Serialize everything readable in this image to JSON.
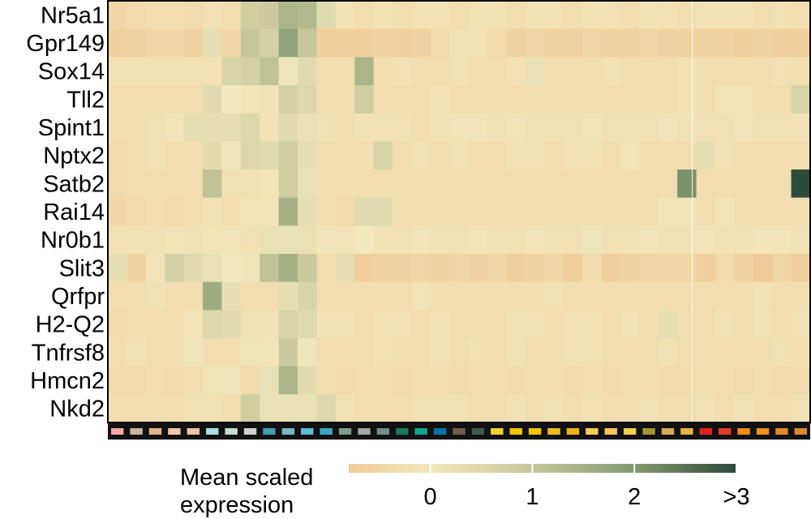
{
  "chart_data": {
    "type": "heatmap",
    "genes": [
      "Nr5a1",
      "Gpr149",
      "Sox14",
      "Tll2",
      "Spint1",
      "Nptx2",
      "Satb2",
      "Rai14",
      "Nr0b1",
      "Slit3",
      "Qrfpr",
      "H2-Q2",
      "Tnfrsf8",
      "Hmcn2",
      "Nkd2"
    ],
    "cluster_colors": [
      "#f4a9a3",
      "#c9b6a1",
      "#e3b48a",
      "#f3c6a2",
      "#efc2a2",
      "#a9dfdf",
      "#c6ddd2",
      "#cfcfcf",
      "#3f9fb2",
      "#77b8c6",
      "#5dbdd2",
      "#3ba7c5",
      "#7d9c8c",
      "#9fa8a3",
      "#6f8f89",
      "#1b7861",
      "#12a48f",
      "#0a74a7",
      "#6e5f4e",
      "#3d5c50",
      "#f2d22d",
      "#f2c600",
      "#f2c600",
      "#f1bb1f",
      "#f2b21b",
      "#f4cf51",
      "#f6c659",
      "#f3cc52",
      "#a3962d",
      "#d7a95b",
      "#e9b045",
      "#e2211d",
      "#e33a27",
      "#f08b14",
      "#f2911d",
      "#e1892a",
      "#d98b2b"
    ],
    "values": [
      [
        -0.5,
        -0.4,
        -0.3,
        -0.3,
        -0.4,
        -0.2,
        -0.3,
        0.8,
        0.9,
        1.4,
        1.3,
        0.4,
        -0.2,
        -0.3,
        -0.2,
        -0.3,
        -0.2,
        -0.2,
        -0.3,
        -0.2,
        -0.2,
        -0.3,
        -0.2,
        -0.2,
        -0.3,
        -0.2,
        -0.2,
        -0.3,
        -0.2,
        -0.2,
        -0.3,
        -0.2,
        -0.2,
        -0.2,
        -0.3,
        -0.2,
        -0.3
      ],
      [
        -0.7,
        -0.6,
        -0.5,
        -0.5,
        -0.6,
        0.3,
        -0.5,
        1.0,
        0.7,
        1.8,
        1.0,
        -0.7,
        -0.7,
        -0.7,
        -0.6,
        -0.7,
        -0.6,
        -0.4,
        -0.2,
        -0.2,
        -0.4,
        -0.6,
        -0.5,
        -0.6,
        -0.6,
        -0.5,
        -0.6,
        -0.6,
        -0.5,
        -0.6,
        -0.6,
        -0.6,
        -0.6,
        -0.7,
        -0.6,
        -0.7,
        -0.7
      ],
      [
        -0.2,
        -0.2,
        -0.2,
        -0.2,
        -0.2,
        -0.2,
        0.6,
        0.7,
        1.1,
        0.1,
        0.4,
        -0.3,
        -0.3,
        1.4,
        -0.3,
        -0.2,
        -0.3,
        -0.3,
        -0.2,
        -0.3,
        -0.3,
        -0.2,
        0.2,
        -0.3,
        -0.3,
        -0.3,
        -0.2,
        -0.3,
        -0.3,
        -0.3,
        -0.2,
        -0.3,
        -0.3,
        -0.3,
        -0.3,
        -0.2,
        -0.3
      ],
      [
        -0.3,
        -0.3,
        -0.3,
        -0.3,
        -0.3,
        0.4,
        0.0,
        -0.1,
        -0.2,
        0.7,
        0.5,
        -0.3,
        -0.3,
        0.8,
        -0.3,
        -0.3,
        -0.3,
        -0.2,
        -0.3,
        -0.3,
        -0.3,
        -0.3,
        -0.3,
        -0.3,
        -0.3,
        -0.3,
        -0.3,
        -0.3,
        -0.3,
        -0.3,
        -0.2,
        -0.3,
        -0.1,
        -0.1,
        -0.3,
        -0.3,
        0.6
      ],
      [
        -0.3,
        -0.3,
        -0.2,
        -0.1,
        0.3,
        0.3,
        0.3,
        0.5,
        -0.2,
        0.4,
        0.2,
        -0.2,
        -0.3,
        -0.2,
        -0.2,
        -0.2,
        -0.3,
        -0.2,
        -0.1,
        -0.1,
        -0.2,
        -0.1,
        -0.2,
        -0.2,
        -0.2,
        -0.1,
        -0.2,
        -0.2,
        -0.2,
        -0.1,
        -0.2,
        -0.2,
        -0.2,
        -0.1,
        -0.2,
        -0.2,
        -0.2
      ],
      [
        -0.4,
        -0.3,
        -0.2,
        -0.3,
        -0.3,
        0.4,
        0.1,
        0.5,
        0.4,
        0.8,
        0.3,
        -0.3,
        -0.3,
        -0.3,
        0.6,
        -0.3,
        -0.2,
        -0.3,
        -0.2,
        -0.3,
        -0.3,
        -0.2,
        -0.2,
        -0.3,
        -0.2,
        -0.2,
        -0.3,
        -0.1,
        -0.3,
        -0.3,
        -0.3,
        0.3,
        -0.2,
        -0.3,
        -0.3,
        -0.3,
        -0.3
      ],
      [
        -0.4,
        -0.3,
        -0.3,
        -0.3,
        -0.3,
        1.1,
        -0.2,
        -0.2,
        -0.1,
        0.8,
        0.2,
        -0.3,
        -0.3,
        -0.3,
        -0.3,
        -0.3,
        -0.3,
        -0.3,
        -0.3,
        -0.3,
        -0.3,
        -0.3,
        -0.3,
        -0.3,
        -0.3,
        -0.3,
        -0.3,
        -0.3,
        -0.3,
        -0.3,
        2.1,
        -0.3,
        -0.3,
        -0.3,
        -0.3,
        -0.3,
        3.5
      ],
      [
        -0.5,
        -0.4,
        -0.3,
        -0.4,
        -0.3,
        -0.2,
        -0.3,
        -0.1,
        -0.1,
        1.5,
        0.3,
        -0.3,
        -0.4,
        0.4,
        0.4,
        -0.3,
        -0.3,
        -0.3,
        -0.3,
        -0.3,
        -0.3,
        -0.3,
        -0.3,
        -0.3,
        -0.3,
        -0.3,
        -0.3,
        -0.3,
        -0.3,
        -0.1,
        -0.1,
        -0.3,
        -0.1,
        -0.3,
        -0.3,
        -0.3,
        -0.3
      ],
      [
        -0.2,
        -0.2,
        -0.2,
        -0.1,
        -0.2,
        -0.1,
        -0.1,
        -0.2,
        0.2,
        0.2,
        0.2,
        -0.1,
        -0.1,
        0.0,
        -0.2,
        -0.2,
        -0.1,
        -0.2,
        -0.2,
        -0.1,
        -0.2,
        -0.2,
        -0.1,
        -0.2,
        -0.2,
        0.1,
        -0.2,
        -0.2,
        -0.1,
        -0.2,
        -0.2,
        -0.1,
        -0.2,
        -0.2,
        -0.1,
        -0.1,
        -0.2
      ],
      [
        0.3,
        -0.6,
        -0.1,
        0.7,
        0.4,
        0.2,
        0.0,
        0.1,
        1.1,
        1.5,
        0.9,
        -0.3,
        0.3,
        -0.7,
        -0.6,
        -0.6,
        -0.5,
        -0.6,
        -0.5,
        -0.6,
        -0.5,
        -0.7,
        -0.6,
        -0.5,
        -0.7,
        -0.4,
        -0.7,
        -0.6,
        -0.5,
        -0.5,
        -0.5,
        -0.7,
        -0.4,
        -0.6,
        -0.8,
        -0.5,
        -0.7
      ],
      [
        -0.3,
        -0.3,
        -0.2,
        -0.3,
        -0.3,
        1.6,
        0.3,
        -0.3,
        -0.3,
        0.3,
        0.6,
        -0.3,
        -0.3,
        -0.3,
        -0.3,
        -0.3,
        -0.1,
        -0.3,
        -0.3,
        -0.3,
        -0.3,
        -0.3,
        -0.3,
        -0.2,
        -0.3,
        -0.3,
        -0.3,
        -0.3,
        -0.3,
        -0.3,
        -0.3,
        -0.3,
        -0.3,
        -0.3,
        -0.2,
        -0.3,
        -0.3
      ],
      [
        -0.4,
        -0.3,
        -0.3,
        -0.3,
        -0.1,
        0.5,
        0.4,
        -0.2,
        -0.2,
        0.6,
        0.4,
        -0.2,
        -0.2,
        -0.3,
        -0.2,
        -0.2,
        -0.3,
        -0.2,
        -0.3,
        -0.3,
        -0.3,
        -0.2,
        -0.2,
        -0.3,
        -0.2,
        -0.2,
        -0.3,
        -0.2,
        -0.3,
        0.3,
        -0.3,
        -0.3,
        -0.2,
        -0.3,
        -0.2,
        -0.3,
        -0.2
      ],
      [
        -0.3,
        -0.2,
        -0.3,
        -0.3,
        0.1,
        -0.3,
        -0.3,
        0.1,
        -0.1,
        0.9,
        0.1,
        -0.3,
        -0.3,
        -0.3,
        -0.2,
        -0.3,
        -0.3,
        -0.2,
        -0.3,
        -0.2,
        -0.3,
        -0.2,
        -0.3,
        -0.3,
        -0.2,
        -0.2,
        -0.3,
        -0.3,
        -0.3,
        -0.2,
        -0.3,
        -0.3,
        -0.3,
        -0.3,
        -0.3,
        -0.2,
        -0.3
      ],
      [
        -0.4,
        -0.4,
        -0.3,
        -0.4,
        -0.3,
        -0.1,
        0.1,
        -0.4,
        0.2,
        1.4,
        0.4,
        -0.3,
        -0.4,
        -0.3,
        -0.3,
        -0.4,
        -0.3,
        -0.3,
        -0.4,
        -0.3,
        -0.3,
        -0.4,
        -0.3,
        -0.3,
        -0.4,
        -0.3,
        -0.4,
        -0.3,
        -0.3,
        -0.4,
        -0.4,
        -0.3,
        -0.3,
        -0.4,
        -0.3,
        -0.4,
        -0.4
      ],
      [
        -0.3,
        -0.3,
        -0.3,
        -0.3,
        -0.2,
        -0.2,
        -0.3,
        0.8,
        0.2,
        0.2,
        0.2,
        0.5,
        -0.2,
        -0.3,
        -0.3,
        -0.3,
        -0.2,
        -0.2,
        -0.2,
        -0.3,
        -0.3,
        -0.2,
        -0.3,
        -0.2,
        -0.3,
        -0.2,
        -0.3,
        -0.3,
        -0.2,
        -0.3,
        -0.3,
        -0.2,
        -0.3,
        -0.2,
        -0.3,
        -0.3,
        -0.2
      ]
    ],
    "colorscale": {
      "stops": [
        {
          "value": -1,
          "color": "#efc48f"
        },
        {
          "value": 0,
          "color": "#f2e8bd"
        },
        {
          "value": 1,
          "color": "#c5c79a"
        },
        {
          "value": 2,
          "color": "#849a6f"
        },
        {
          "value": 3,
          "color": "#2d4a3b"
        }
      ],
      "ticks": [
        {
          "value": 0,
          "label": "0"
        },
        {
          "value": 1,
          "label": "1"
        },
        {
          "value": 2,
          "label": "2"
        },
        {
          "value": 3,
          "label": ">3"
        }
      ],
      "range": [
        -0.8,
        3
      ]
    },
    "legend": {
      "title_lines": [
        "Mean scaled",
        "expression"
      ],
      "placement": "bottom"
    }
  }
}
